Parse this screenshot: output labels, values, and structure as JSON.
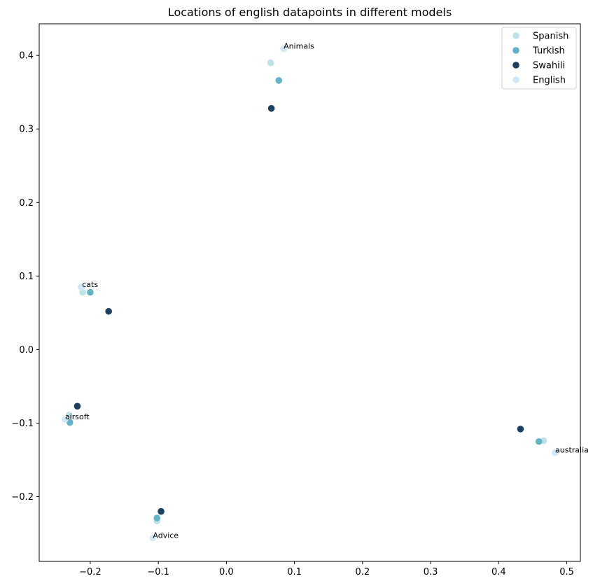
{
  "chart_data": {
    "type": "scatter",
    "title": "Locations of english datapoints in different models",
    "xlabel": "",
    "ylabel": "",
    "xlim": [
      -0.275,
      0.52
    ],
    "ylim": [
      -0.288,
      0.443
    ],
    "xticks": [
      -0.2,
      -0.1,
      0.0,
      0.1,
      0.2,
      0.3,
      0.4,
      0.5
    ],
    "xtick_labels": [
      "−0.2",
      "−0.1",
      "0.0",
      "0.1",
      "0.2",
      "0.3",
      "0.4",
      "0.5"
    ],
    "yticks": [
      -0.2,
      -0.1,
      0.0,
      0.1,
      0.2,
      0.3,
      0.4
    ],
    "ytick_labels": [
      "−0.2",
      "−0.1",
      "0.0",
      "0.1",
      "0.2",
      "0.3",
      "0.4"
    ],
    "grid": false,
    "legend_position": "top-right",
    "series": [
      {
        "name": "Spanish",
        "color": "#bce3e6",
        "points": [
          [
            0.065,
            0.39
          ],
          [
            -0.213,
            0.085
          ],
          [
            -0.211,
            0.078
          ],
          [
            -0.231,
            -0.089
          ],
          [
            -0.102,
            -0.233
          ],
          [
            0.466,
            -0.124
          ]
        ]
      },
      {
        "name": "Turkish",
        "color": "#62b3c5",
        "points": [
          [
            0.077,
            0.366
          ],
          [
            -0.2,
            0.078
          ],
          [
            -0.23,
            -0.099
          ],
          [
            -0.102,
            -0.229
          ],
          [
            0.459,
            -0.125
          ]
        ]
      },
      {
        "name": "Swahili",
        "color": "#1b4060",
        "points": [
          [
            0.066,
            0.328
          ],
          [
            -0.173,
            0.052
          ],
          [
            -0.219,
            -0.077
          ],
          [
            -0.096,
            -0.22
          ],
          [
            0.432,
            -0.108
          ]
        ]
      },
      {
        "name": "English",
        "color": "#cfe7f7",
        "points": [
          [
            0.084,
            0.409
          ],
          [
            -0.212,
            0.085
          ],
          [
            -0.237,
            -0.095
          ],
          [
            -0.108,
            -0.256
          ],
          [
            0.483,
            -0.14
          ]
        ]
      }
    ],
    "annotations": [
      {
        "text": "Animals",
        "x": 0.084,
        "y": 0.409
      },
      {
        "text": "cats",
        "x": -0.212,
        "y": 0.085
      },
      {
        "text": "airsoft",
        "x": -0.237,
        "y": -0.095
      },
      {
        "text": "Advice",
        "x": -0.108,
        "y": -0.256
      },
      {
        "text": "australia",
        "x": 0.483,
        "y": -0.14
      }
    ]
  }
}
